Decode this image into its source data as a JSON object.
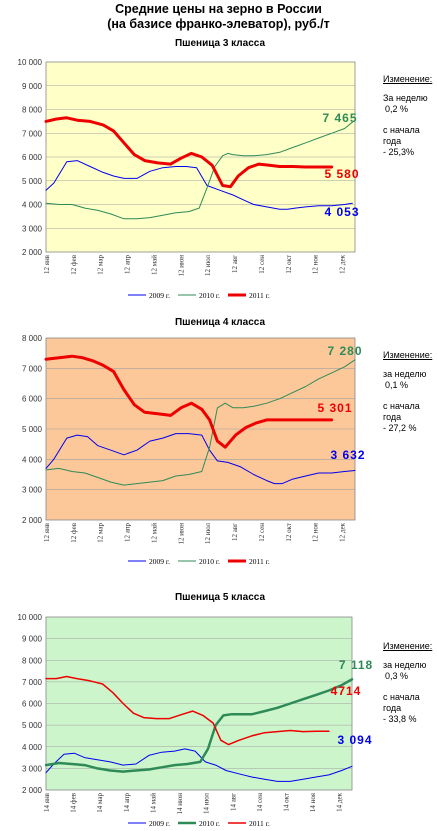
{
  "title_line1": "Средние цены на зерно в России",
  "title_line2": "(на базисе франко-элеватор), руб./т",
  "sidebar_labels": {
    "change": "Изменение:",
    "week_l1": "За  неделю",
    "week_l2": "за  неделю",
    "start_l1": "с начала",
    "start_l2": "года"
  },
  "chart_data": [
    {
      "type": "line",
      "title": "Пшеница 3  класса",
      "ylim": [
        2000,
        10000
      ],
      "yticks": [
        "10 000",
        "9 000",
        "8 000",
        "7 000",
        "6 000",
        "5 000",
        "4 000",
        "3 000",
        "2 000"
      ],
      "xticks": [
        "12 янв",
        "12 фев",
        "12 мар",
        "12 апр",
        "12 май",
        "12 июн",
        "12 июл",
        "12 авг",
        "12 сен",
        "12 окт",
        "12 ноя",
        "12 дек"
      ],
      "background": "#ffffc8",
      "grid": true,
      "legend_position": "bottom",
      "series": [
        {
          "name": "2009 г.",
          "color": "#0000ee",
          "width": 1,
          "x": [
            0,
            0.3,
            0.8,
            1.2,
            1.7,
            2.2,
            2.6,
            3.0,
            3.5,
            4.0,
            4.5,
            5.0,
            5.4,
            5.8,
            6.2,
            6.7,
            7.2,
            7.6,
            8.0,
            8.5,
            9.0,
            9.3,
            9.6,
            10.0,
            10.5,
            11.0,
            11.5,
            11.8
          ],
          "y": [
            4600,
            4900,
            5800,
            5850,
            5600,
            5350,
            5200,
            5100,
            5100,
            5400,
            5550,
            5600,
            5600,
            5550,
            4800,
            4600,
            4400,
            4200,
            4000,
            3900,
            3800,
            3800,
            3850,
            3900,
            3950,
            3950,
            4000,
            4053
          ]
        },
        {
          "name": "2010 г.",
          "color": "#2e8b57",
          "width": 1,
          "x": [
            0,
            0.5,
            1.0,
            1.5,
            2.0,
            2.5,
            3.0,
            3.5,
            4.0,
            4.5,
            5.0,
            5.5,
            5.9,
            6.2,
            6.5,
            6.8,
            7.0,
            7.2,
            7.6,
            8.0,
            8.5,
            9.0,
            9.5,
            10.0,
            10.5,
            11.0,
            11.5,
            11.8
          ],
          "y": [
            4050,
            4000,
            4000,
            3850,
            3750,
            3600,
            3400,
            3400,
            3450,
            3550,
            3650,
            3700,
            3850,
            4700,
            5600,
            6050,
            6150,
            6100,
            6050,
            6050,
            6100,
            6200,
            6400,
            6600,
            6800,
            7000,
            7200,
            7465
          ]
        },
        {
          "name": "2011 г.",
          "color": "#ee0000",
          "width": 3,
          "x": [
            0,
            0.4,
            0.8,
            1.2,
            1.7,
            2.2,
            2.6,
            3.0,
            3.4,
            3.8,
            4.3,
            4.8,
            5.2,
            5.6,
            6.0,
            6.4,
            6.8,
            7.1,
            7.4,
            7.8,
            8.2,
            8.6,
            9.0,
            9.5,
            10.0,
            10.5,
            11.0
          ],
          "y": [
            7500,
            7600,
            7650,
            7550,
            7500,
            7350,
            7100,
            6600,
            6100,
            5850,
            5750,
            5700,
            5950,
            6150,
            6000,
            5650,
            4800,
            4750,
            5200,
            5550,
            5700,
            5650,
            5600,
            5600,
            5580,
            5580,
            5580
          ]
        }
      ],
      "end_labels": [
        {
          "text": "7 465",
          "series": "2010 г."
        },
        {
          "text": "5 580",
          "series": "2011 г."
        },
        {
          "text": "4 053",
          "series": "2009 г."
        }
      ],
      "change_week": "0,2 %",
      "change_start_prefix": "с начала",
      "change_start": "- 25,3%"
    },
    {
      "type": "line",
      "title": "Пшеница 4 класса",
      "ylim": [
        2000,
        8000
      ],
      "yticks": [
        "8 000",
        "7 000",
        "6 000",
        "5 000",
        "4 000",
        "3 000",
        "2 000"
      ],
      "xticks": [
        "12 янв",
        "12 фев",
        "12 мар",
        "12 апр",
        "12 май",
        "12 июн",
        "12 июл",
        "12 авг",
        "12 сен",
        "12 окт",
        "12 ноя",
        "12 дек"
      ],
      "background": "#fcc89a",
      "grid": true,
      "legend_position": "bottom",
      "series": [
        {
          "name": "2009 г.",
          "color": "#0000ee",
          "width": 1,
          "x": [
            0,
            0.3,
            0.8,
            1.2,
            1.6,
            2.0,
            2.5,
            3.0,
            3.5,
            4.0,
            4.5,
            5.0,
            5.5,
            6.0,
            6.3,
            6.6,
            7.0,
            7.5,
            8.0,
            8.5,
            8.8,
            9.1,
            9.5,
            10.0,
            10.5,
            11.0,
            11.5,
            11.9
          ],
          "y": [
            3700,
            4000,
            4700,
            4800,
            4750,
            4450,
            4300,
            4150,
            4300,
            4600,
            4700,
            4850,
            4850,
            4800,
            4300,
            3950,
            3900,
            3750,
            3500,
            3300,
            3200,
            3200,
            3350,
            3450,
            3550,
            3550,
            3600,
            3632
          ]
        },
        {
          "name": "2010 г.",
          "color": "#2e8b57",
          "width": 1,
          "x": [
            0,
            0.5,
            1.0,
            1.5,
            2.0,
            2.5,
            3.0,
            3.5,
            4.0,
            4.5,
            5.0,
            5.5,
            6.0,
            6.3,
            6.6,
            6.9,
            7.2,
            7.6,
            8.0,
            8.5,
            9.0,
            9.5,
            10.0,
            10.5,
            11.0,
            11.5,
            11.9
          ],
          "y": [
            3650,
            3700,
            3600,
            3550,
            3400,
            3250,
            3150,
            3200,
            3250,
            3300,
            3450,
            3500,
            3600,
            4400,
            5700,
            5850,
            5700,
            5700,
            5750,
            5850,
            6000,
            6200,
            6400,
            6650,
            6850,
            7050,
            7280
          ]
        },
        {
          "name": "2011 г.",
          "color": "#ee0000",
          "width": 3,
          "x": [
            0,
            0.5,
            1.0,
            1.4,
            1.8,
            2.2,
            2.6,
            3.0,
            3.4,
            3.8,
            4.3,
            4.8,
            5.2,
            5.6,
            6.0,
            6.3,
            6.6,
            6.9,
            7.3,
            7.7,
            8.1,
            8.5,
            9.0,
            9.5,
            10.0,
            10.5,
            11.0
          ],
          "y": [
            7300,
            7350,
            7400,
            7350,
            7250,
            7100,
            6900,
            6300,
            5800,
            5550,
            5500,
            5450,
            5700,
            5850,
            5650,
            5300,
            4600,
            4400,
            4800,
            5050,
            5200,
            5300,
            5300,
            5300,
            5300,
            5301,
            5301
          ]
        }
      ],
      "end_labels": [
        {
          "text": "7 280",
          "series": "2010 г."
        },
        {
          "text": "5 301",
          "series": "2011 г."
        },
        {
          "text": "3 632",
          "series": "2009 г."
        }
      ],
      "change_week": "0,1 %",
      "change_start_prefix": "с начала",
      "change_start": "- 27,2 %"
    },
    {
      "type": "line",
      "title": "Пшеница 5 класса",
      "ylim": [
        2000,
        10000
      ],
      "yticks": [
        "10 000",
        "9 000",
        "8 000",
        "7 000",
        "6 000",
        "5 000",
        "4 000",
        "3 000",
        "2 000"
      ],
      "xticks": [
        "14 янв",
        "14 фев",
        "14 мар",
        "14 апр",
        "14 май",
        "14 июн",
        "14 июл",
        "14 авг",
        "14 сен",
        "14 окт",
        "14 ноя",
        "14 дек"
      ],
      "background": "#ccf5cc",
      "grid": true,
      "legend_position": "bottom",
      "series": [
        {
          "name": "2009 г.",
          "color": "#0000ee",
          "width": 1,
          "x": [
            0,
            0.3,
            0.7,
            1.1,
            1.5,
            2.0,
            2.5,
            3.0,
            3.5,
            4.0,
            4.5,
            5.0,
            5.4,
            5.8,
            6.2,
            6.6,
            7.0,
            7.5,
            8.0,
            8.5,
            9.0,
            9.5,
            10.0,
            10.5,
            11.0,
            11.5,
            11.9
          ],
          "y": [
            2800,
            3200,
            3650,
            3700,
            3500,
            3400,
            3300,
            3150,
            3200,
            3600,
            3750,
            3800,
            3900,
            3800,
            3300,
            3150,
            2900,
            2750,
            2600,
            2500,
            2400,
            2400,
            2500,
            2600,
            2700,
            2900,
            3094
          ]
        },
        {
          "name": "2010 г.",
          "color": "#2e8b57",
          "width": 2.5,
          "x": [
            0,
            0.5,
            1.0,
            1.5,
            2.0,
            2.5,
            3.0,
            3.5,
            4.0,
            4.5,
            5.0,
            5.5,
            6.0,
            6.3,
            6.6,
            6.9,
            7.2,
            7.6,
            8.0,
            8.5,
            9.0,
            9.5,
            10.0,
            10.5,
            11.0,
            11.5,
            11.9
          ],
          "y": [
            3150,
            3250,
            3200,
            3150,
            3000,
            2900,
            2850,
            2900,
            2950,
            3050,
            3150,
            3200,
            3300,
            3900,
            5000,
            5450,
            5500,
            5500,
            5500,
            5650,
            5800,
            6000,
            6200,
            6400,
            6600,
            6850,
            7118
          ]
        },
        {
          "name": "2011 г.",
          "color": "#ee0000",
          "width": 1.5,
          "x": [
            0,
            0.4,
            0.8,
            1.2,
            1.7,
            2.2,
            2.6,
            3.0,
            3.4,
            3.8,
            4.3,
            4.8,
            5.3,
            5.7,
            6.1,
            6.5,
            6.8,
            7.1,
            7.5,
            8.0,
            8.5,
            9.0,
            9.5,
            10.0,
            10.5,
            11.0
          ],
          "y": [
            7150,
            7150,
            7250,
            7150,
            7050,
            6900,
            6500,
            6000,
            5550,
            5350,
            5300,
            5300,
            5500,
            5650,
            5450,
            5100,
            4300,
            4100,
            4300,
            4500,
            4650,
            4700,
            4750,
            4700,
            4714,
            4714
          ]
        }
      ],
      "end_labels": [
        {
          "text": "7 118",
          "series": "2010 г."
        },
        {
          "text": "4714",
          "series": "2011 г."
        },
        {
          "text": "3 094",
          "series": "2009 г."
        }
      ],
      "change_week": "0,3 %",
      "change_start_prefix": "с начала",
      "change_start": "- 33,8 %"
    }
  ]
}
